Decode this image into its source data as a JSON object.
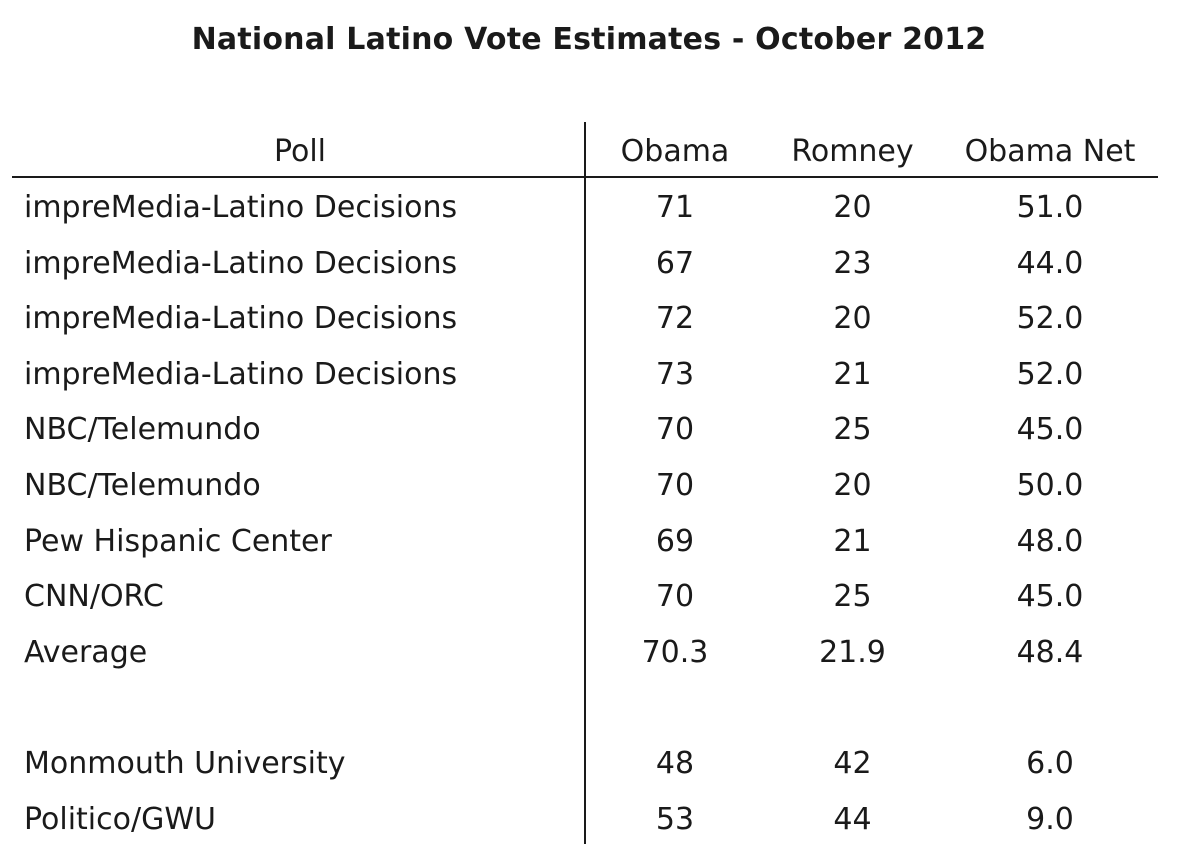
{
  "chart_data": {
    "type": "table",
    "title": "National Latino Vote Estimates - October 2012",
    "columns": [
      "Poll",
      "Obama",
      "Romney",
      "Obama Net"
    ],
    "rows": [
      {
        "poll": "impreMedia-Latino Decisions",
        "obama": "71",
        "romney": "20",
        "net": "51.0"
      },
      {
        "poll": "impreMedia-Latino Decisions",
        "obama": "67",
        "romney": "23",
        "net": "44.0"
      },
      {
        "poll": "impreMedia-Latino Decisions",
        "obama": "72",
        "romney": "20",
        "net": "52.0"
      },
      {
        "poll": "impreMedia-Latino Decisions",
        "obama": "73",
        "romney": "21",
        "net": "52.0"
      },
      {
        "poll": "NBC/Telemundo",
        "obama": "70",
        "romney": "25",
        "net": "45.0"
      },
      {
        "poll": "NBC/Telemundo",
        "obama": "70",
        "romney": "20",
        "net": "50.0"
      },
      {
        "poll": "Pew Hispanic Center",
        "obama": "69",
        "romney": "21",
        "net": "48.0"
      },
      {
        "poll": "CNN/ORC",
        "obama": "70",
        "romney": "25",
        "net": "45.0"
      },
      {
        "poll": "Average",
        "obama": "70.3",
        "romney": "21.9",
        "net": "48.4"
      }
    ],
    "extra_rows": [
      {
        "poll": "Monmouth University",
        "obama": "48",
        "romney": "42",
        "net": "6.0"
      },
      {
        "poll": "Politico/GWU",
        "obama": "53",
        "romney": "44",
        "net": "9.0"
      }
    ]
  }
}
